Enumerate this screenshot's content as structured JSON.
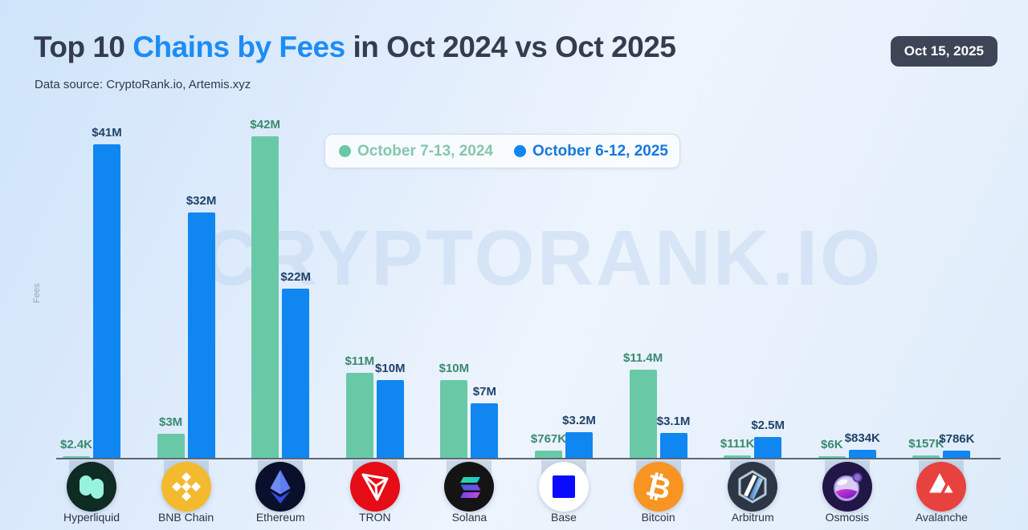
{
  "header": {
    "title_prefix": "Top 10 ",
    "title_highlight": "Chains by Fees",
    "title_suffix": " in Oct 2024 vs Oct 2025",
    "subtitle": "Data source: CryptoRank.io, Artemis.xyz",
    "date_badge": "Oct 15, 2025"
  },
  "watermark": "CRYPTORANK.IO",
  "axis": {
    "y_label": "Fees"
  },
  "legend": {
    "items": [
      {
        "label": "October 7-13, 2024",
        "dot_icon": "green-dot-icon",
        "color": "#69c9a6"
      },
      {
        "label": "October 6-12, 2025",
        "dot_icon": "blue-dot-icon",
        "color": "#1086f0"
      }
    ]
  },
  "colors": {
    "bar_2024": "#69c9a6",
    "bar_2025": "#1086f0",
    "label_2024_text": "#3a8a6f",
    "label_2025_text": "#21436a",
    "title_accent": "#1d8cf5",
    "badge_bg": "#3e4557"
  },
  "chart_data": {
    "type": "bar",
    "title": "Top 10 Chains by Fees in Oct 2024 vs Oct 2025",
    "xlabel": "",
    "ylabel": "Fees",
    "unit": "USD",
    "scale": "linear",
    "grid": false,
    "legend_position": "top-center",
    "categories": [
      "Hyperliquid",
      "BNB Chain",
      "Ethereum",
      "TRON",
      "Solana",
      "Base",
      "Bitcoin",
      "Arbitrum",
      "Osmosis",
      "Avalanche"
    ],
    "icons": [
      "hyperliquid-icon",
      "bnb-chain-icon",
      "ethereum-icon",
      "tron-icon",
      "solana-icon",
      "base-icon",
      "bitcoin-icon",
      "arbitrum-icon",
      "osmosis-icon",
      "avalanche-icon"
    ],
    "series": [
      {
        "name": "October 7-13, 2024",
        "color": "#69c9a6",
        "label_color": "#3a8a6f",
        "values": [
          2400,
          3000000,
          42000000,
          11000000,
          10000000,
          767000,
          11400000,
          111000,
          6000,
          157000
        ],
        "labels": [
          "$2.4K",
          "$3M",
          "$42M",
          "$11M",
          "$10M",
          "$767K",
          "$11.4M",
          "$111K",
          "$6K",
          "$157K"
        ]
      },
      {
        "name": "October 6-12, 2025",
        "color": "#1086f0",
        "label_color": "#21436a",
        "values": [
          41000000,
          32000000,
          22000000,
          10000000,
          7000000,
          3200000,
          3100000,
          2500000,
          834000,
          786000
        ],
        "labels": [
          "$41M",
          "$32M",
          "$22M",
          "$10M",
          "$7M",
          "$3.2M",
          "$3.1M",
          "$2.5M",
          "$834K",
          "$786K"
        ]
      }
    ]
  }
}
